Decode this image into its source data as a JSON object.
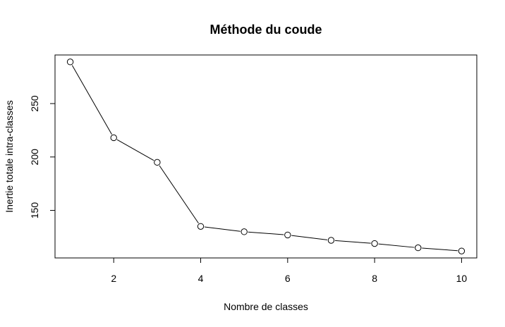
{
  "chart_data": {
    "type": "line",
    "title": "Méthode du coude",
    "xlabel": "Nombre de classes",
    "ylabel": "Inertie totale intra-classes",
    "x": [
      1,
      2,
      3,
      4,
      5,
      6,
      7,
      8,
      9,
      10
    ],
    "series": [
      {
        "values": [
          289,
          218,
          195,
          135,
          130,
          127,
          122,
          119,
          115,
          112
        ]
      }
    ],
    "xlim": [
      0.65,
      10.35
    ],
    "ylim": [
      105.5,
      295.5
    ],
    "xticks": [
      2,
      4,
      6,
      8,
      10
    ],
    "yticks": [
      150,
      200,
      250
    ],
    "grid": false,
    "legend": "none",
    "colors": {
      "line": "#000000",
      "marker": "#000000"
    }
  }
}
